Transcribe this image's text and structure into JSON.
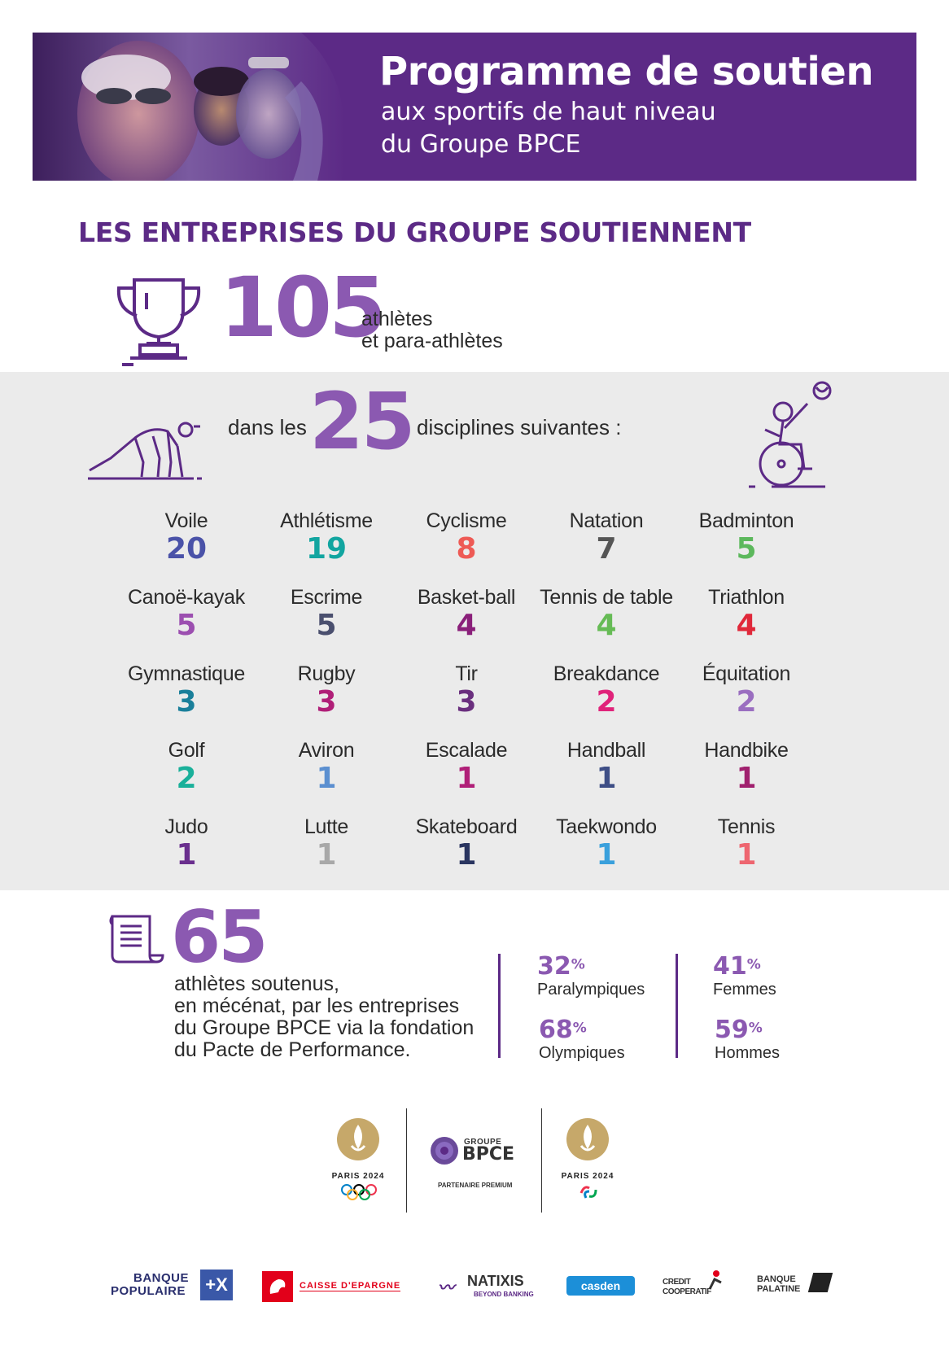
{
  "header": {
    "title": "Programme de soutien",
    "subtitle_line1": "aux sportifs de haut niveau",
    "subtitle_line2": "du Groupe BPCE"
  },
  "section_title": "LES ENTREPRISES DU GROUPE SOUTIENNENT",
  "athletes": {
    "count": "105",
    "label_line1": "athlètes",
    "label_line2": "et para-athlètes"
  },
  "disciplines_intro": {
    "prefix": "dans les",
    "count": "25",
    "suffix": "disciplines suivantes :"
  },
  "disciplines": [
    {
      "name": "Voile",
      "count": "20",
      "color": "#4a52a8"
    },
    {
      "name": "Athlétisme",
      "count": "19",
      "color": "#12a5a0"
    },
    {
      "name": "Cyclisme",
      "count": "8",
      "color": "#ee5a55"
    },
    {
      "name": "Natation",
      "count": "7",
      "color": "#555555"
    },
    {
      "name": "Badminton",
      "count": "5",
      "color": "#5cb85c"
    },
    {
      "name": "Canoë-kayak",
      "count": "5",
      "color": "#9c4fb0"
    },
    {
      "name": "Escrime",
      "count": "5",
      "color": "#4a4f6e"
    },
    {
      "name": "Basket-ball",
      "count": "4",
      "color": "#8a1f7a"
    },
    {
      "name": "Tennis de table",
      "count": "4",
      "color": "#66bb55"
    },
    {
      "name": "Triathlon",
      "count": "4",
      "color": "#e0283a"
    },
    {
      "name": "Gymnastique",
      "count": "3",
      "color": "#1a7f9a"
    },
    {
      "name": "Rugby",
      "count": "3",
      "color": "#b01f78"
    },
    {
      "name": "Tir",
      "count": "3",
      "color": "#6a2f7e"
    },
    {
      "name": "Breakdance",
      "count": "2",
      "color": "#e0237a"
    },
    {
      "name": "Équitation",
      "count": "2",
      "color": "#9a6ec0"
    },
    {
      "name": "Golf",
      "count": "2",
      "color": "#1ab09a"
    },
    {
      "name": "Aviron",
      "count": "1",
      "color": "#5b8fd0"
    },
    {
      "name": "Escalade",
      "count": "1",
      "color": "#b01f78"
    },
    {
      "name": "Handball",
      "count": "1",
      "color": "#3e4e86"
    },
    {
      "name": "Handbike",
      "count": "1",
      "color": "#a0206e"
    },
    {
      "name": "Judo",
      "count": "1",
      "color": "#6a2f8e"
    },
    {
      "name": "Lutte",
      "count": "1",
      "color": "#a8a8a8"
    },
    {
      "name": "Skateboard",
      "count": "1",
      "color": "#2a3560"
    },
    {
      "name": "Taekwondo",
      "count": "1",
      "color": "#3aa0dc"
    },
    {
      "name": "Tennis",
      "count": "1",
      "color": "#ee6670"
    }
  ],
  "mecenat": {
    "count": "65",
    "line1": "athlètes soutenus,",
    "line2": "en mécénat, par les entreprises",
    "line3": "du Groupe BPCE via la fondation",
    "line4": "du Pacte de Performance."
  },
  "stats": {
    "paralympiques": {
      "value": "32",
      "pct": "%",
      "label": "Paralympiques"
    },
    "olympiques": {
      "value": "68",
      "pct": "%",
      "label": "Olympiques"
    },
    "femmes": {
      "value": "41",
      "pct": "%",
      "label": "Femmes"
    },
    "hommes": {
      "value": "59",
      "pct": "%",
      "label": "Hommes"
    }
  },
  "logos": {
    "paris_olympic": "PARIS 2024",
    "bpce_groupe": "GROUPE",
    "bpce_name": "BPCE",
    "bpce_partner": "PARTENAIRE PREMIUM",
    "paris_paralympic": "PARIS 2024"
  },
  "brands": {
    "banque_populaire_l1": "BANQUE",
    "banque_populaire_l2": "POPULAIRE",
    "banque_populaire_badge": "+X",
    "caisse_epargne": "CAISSE D'EPARGNE",
    "natixis": "NATIXIS",
    "natixis_tag": "BEYOND BANKING",
    "casden": "casden",
    "credit_coop_l1": "CREDIT",
    "credit_coop_l2": "COOPERATIF",
    "palatine_l1": "BANQUE",
    "palatine_l2": "PALATINE"
  },
  "colors": {
    "purple_dark": "#5c2a86",
    "purple_light": "#8b59b1",
    "grey_band": "#ebebeb"
  }
}
